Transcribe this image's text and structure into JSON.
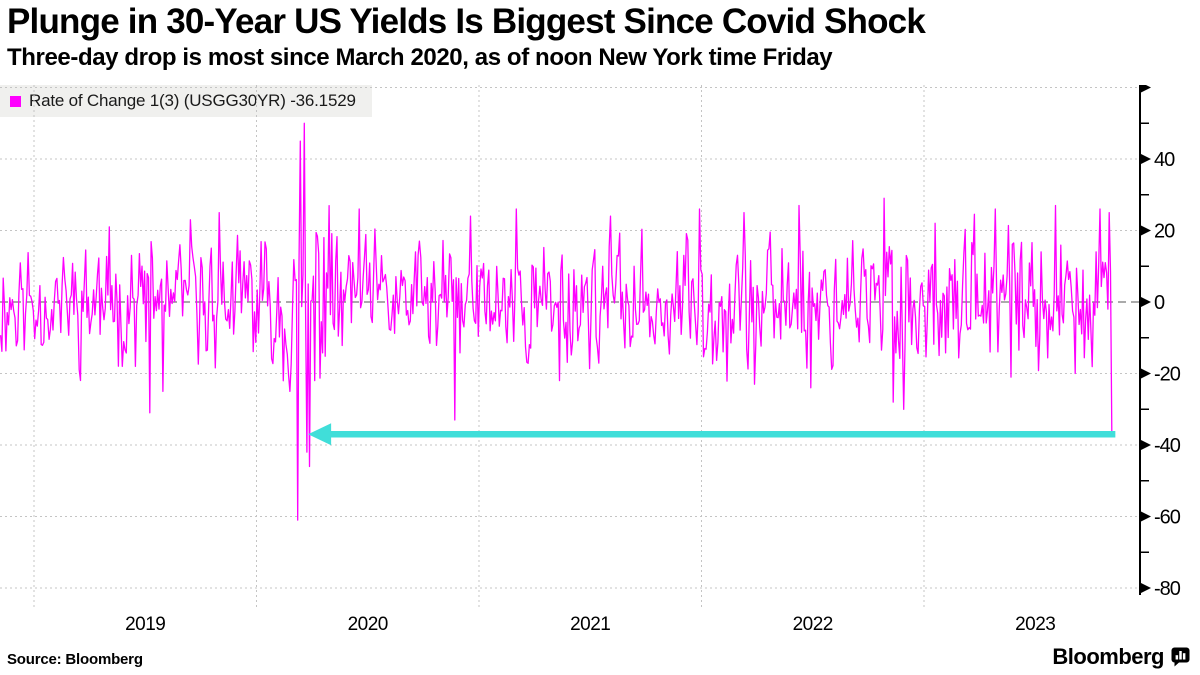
{
  "header": {
    "title": "Plunge in 30-Year US Yields Is Biggest Since Covid Shock",
    "subtitle": "Three-day drop is most since March 2020, as of noon New York time Friday"
  },
  "legend": {
    "swatch_color": "#ff00ff",
    "label": "Rate of Change 1(3) (USGG30YR) -36.1529"
  },
  "footer": {
    "source": "Source: Bloomberg",
    "brand": "Bloomberg",
    "brand_icon": "bar-chart-speech-bubble"
  },
  "colors": {
    "line": "#ff00ff",
    "arrow": "#40ded9",
    "grid": "#c4c4c4",
    "zero_line": "#777777",
    "axis": "#000000",
    "legend_bg": "#f0f0ee",
    "text": "#000000"
  },
  "chart_data": {
    "type": "line",
    "title": "Plunge in 30-Year US Yields Is Biggest Since Covid Shock",
    "subtitle": "Three-day drop is most since March 2020, as of noon New York time Friday",
    "series_name": "Rate of Change 1(3) (USGG30YR)",
    "last_value": -36.1529,
    "line_color": "#ff00ff",
    "legend_position": "top-left",
    "x_axis": {
      "tick_labels": [
        "2019",
        "2020",
        "2021",
        "2022",
        "2023"
      ],
      "gridline_years": [
        2019,
        2020,
        2021,
        2022,
        2023
      ],
      "data_start": 2018.85,
      "data_end": 2023.845,
      "axis_end": 2023.97
    },
    "y_axis": {
      "side": "right",
      "grid": true,
      "ylim": [
        -86,
        63
      ],
      "labeled_ticks": [
        40,
        20,
        0,
        -20,
        -40,
        -60,
        -80
      ],
      "major_ticks": [
        60,
        40,
        20,
        0,
        -20,
        -40,
        -60,
        -80
      ],
      "minor_ticks": [
        50,
        30,
        10,
        -10,
        -30,
        -50,
        -70
      ]
    },
    "annotation_arrow": {
      "color": "#40ded9",
      "y": -37,
      "x_tail": 2023.86,
      "x_tip": 2020.232
    },
    "series_spec": {
      "seed": 11,
      "points_per_year": 170,
      "ar": 0.3,
      "noise_mult": 1.6,
      "clamp": [
        -33,
        29
      ],
      "eras": [
        {
          "until": 2020.1,
          "amp": 12
        },
        {
          "until": 2020.4,
          "amp": 17
        },
        {
          "until": 2021.95,
          "amp": 12
        },
        {
          "until": 2023.0,
          "amp": 14
        },
        {
          "until": 2023.85,
          "amp": 13
        }
      ],
      "spikes": [
        [
          2019.34,
          21
        ],
        [
          2019.52,
          -31
        ],
        [
          2019.58,
          -25
        ],
        [
          2019.7,
          23
        ],
        [
          2019.83,
          25
        ],
        [
          2020.15,
          -25
        ],
        [
          2020.186,
          -61
        ],
        [
          2020.196,
          45
        ],
        [
          2020.215,
          50
        ],
        [
          2020.228,
          -42
        ],
        [
          2020.238,
          -46
        ],
        [
          2020.26,
          -22
        ],
        [
          2020.3,
          18
        ],
        [
          2020.46,
          26
        ],
        [
          2020.89,
          -33
        ],
        [
          2020.96,
          24
        ],
        [
          2021.17,
          26
        ],
        [
          2021.36,
          -22
        ],
        [
          2021.59,
          24
        ],
        [
          2021.99,
          26
        ],
        [
          2022.19,
          25
        ],
        [
          2022.24,
          -23
        ],
        [
          2022.44,
          27
        ],
        [
          2022.49,
          -24
        ],
        [
          2022.82,
          29
        ],
        [
          2022.86,
          -28
        ],
        [
          2022.91,
          -30
        ],
        [
          2023.05,
          22
        ],
        [
          2023.32,
          26
        ],
        [
          2023.39,
          -21
        ],
        [
          2023.59,
          27
        ],
        [
          2023.68,
          -20
        ],
        [
          2023.79,
          26
        ],
        [
          2023.83,
          25
        ]
      ]
    }
  }
}
